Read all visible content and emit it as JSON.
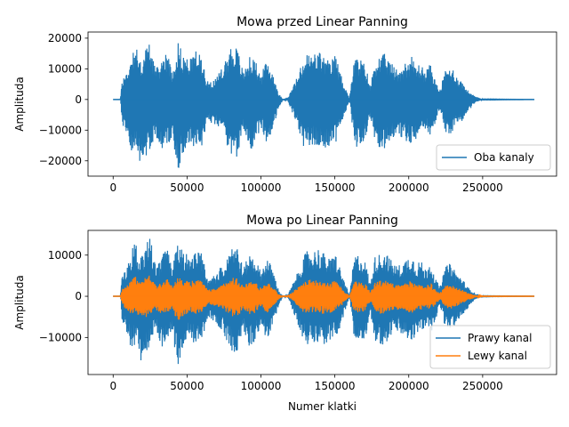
{
  "chart_data": [
    {
      "type": "line",
      "title": "Mowa przed Linear Panning",
      "xlabel": "",
      "ylabel": "Amplituda",
      "xlim": [
        -17000,
        300000
      ],
      "ylim": [
        -25000,
        22000
      ],
      "xticks": [
        0,
        50000,
        100000,
        150000,
        200000,
        250000
      ],
      "xtick_labels": [
        "0",
        "50000",
        "100000",
        "150000",
        "200000",
        "250000"
      ],
      "yticks": [
        -20000,
        -10000,
        0,
        10000,
        20000
      ],
      "ytick_labels": [
        "−20000",
        "−10000",
        "0",
        "10000",
        "20000"
      ],
      "legend_position": "lower-right",
      "series": [
        {
          "name": "Oba kanaly",
          "color": "#1f77b4",
          "x_start": 0,
          "x_end": 285000,
          "envelope_x": [
            0,
            5000,
            6000,
            9000,
            12000,
            15000,
            18000,
            22000,
            25000,
            29000,
            33000,
            36000,
            40000,
            44000,
            47000,
            52000,
            56000,
            60000,
            64000,
            70000,
            75000,
            80000,
            84000,
            88000,
            92000,
            96000,
            100000,
            104000,
            108000,
            112000,
            115000,
            118000,
            125000,
            128000,
            131000,
            135000,
            139000,
            143000,
            147000,
            150000,
            155000,
            160000,
            163000,
            165000,
            168000,
            171000,
            174000,
            177000,
            180000,
            184000,
            188000,
            192000,
            196000,
            199000,
            202000,
            205000,
            208000,
            211000,
            215000,
            218000,
            221000,
            225000,
            229000,
            232000,
            236000,
            240000,
            245000,
            250000,
            285000
          ],
          "envelope_max": [
            0,
            0,
            7000,
            9000,
            14000,
            19000,
            12000,
            17000,
            19000,
            10000,
            13000,
            17000,
            9000,
            19000,
            15000,
            13000,
            16000,
            14000,
            6000,
            7000,
            12000,
            18000,
            17000,
            9000,
            14000,
            13000,
            8000,
            13000,
            9000,
            2000,
            0,
            300,
            8000,
            12000,
            15000,
            15000,
            16000,
            14000,
            12000,
            15000,
            7000,
            300,
            13000,
            14000,
            13000,
            11000,
            4000,
            13000,
            14000,
            15000,
            12000,
            10000,
            11000,
            13000,
            14000,
            11000,
            12000,
            9000,
            12000,
            6000,
            3000,
            10000,
            11000,
            8000,
            6000,
            3000,
            1000,
            100,
            0
          ],
          "envelope_min": [
            0,
            0,
            -8000,
            -12000,
            -17000,
            -16000,
            -22000,
            -20000,
            -16000,
            -12000,
            -17000,
            -15000,
            -13000,
            -23000,
            -18000,
            -14000,
            -16000,
            -15000,
            -7000,
            -9000,
            -13000,
            -18000,
            -19000,
            -11000,
            -17000,
            -15000,
            -9000,
            -15000,
            -10000,
            -3000,
            0,
            -300,
            -9000,
            -15000,
            -16000,
            -15000,
            -15000,
            -16000,
            -15000,
            -15000,
            -8000,
            -300,
            -14000,
            -16000,
            -15000,
            -13000,
            -5000,
            -15000,
            -16000,
            -16000,
            -13000,
            -12000,
            -13000,
            -15000,
            -15000,
            -13000,
            -13000,
            -10000,
            -12000,
            -8000,
            -3000,
            -11000,
            -11000,
            -9000,
            -7000,
            -4000,
            -1000,
            -100,
            0
          ]
        }
      ]
    },
    {
      "type": "line",
      "title": "Mowa po Linear Panning",
      "xlabel": "Numer klatki",
      "ylabel": "Amplituda",
      "xlim": [
        -17000,
        300000
      ],
      "ylim": [
        -19000,
        16000
      ],
      "xticks": [
        0,
        50000,
        100000,
        150000,
        200000,
        250000
      ],
      "xtick_labels": [
        "0",
        "50000",
        "100000",
        "150000",
        "200000",
        "250000"
      ],
      "yticks": [
        -10000,
        0,
        10000
      ],
      "ytick_labels": [
        "−10000",
        "0",
        "10000"
      ],
      "legend_position": "lower-right",
      "series": [
        {
          "name": "Prawy kanal",
          "color": "#1f77b4",
          "envelope_scale": 0.74
        },
        {
          "name": "Lewy kanal",
          "color": "#ff7f0e",
          "envelope_scale": 0.27
        }
      ]
    }
  ]
}
